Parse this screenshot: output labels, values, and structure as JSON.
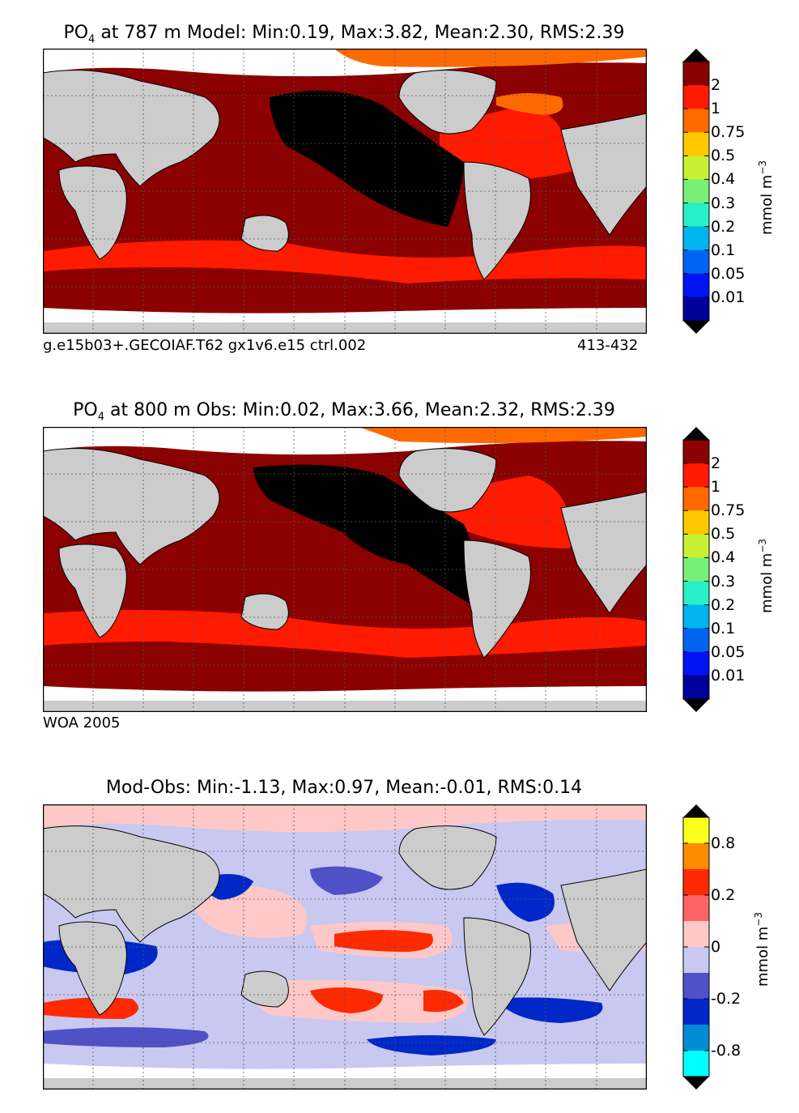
{
  "panels": [
    {
      "title_prefix": "PO",
      "title_sub": "4",
      "title_rest": " at 787 m Model: Min:0.19, Max:3.82, Mean:2.30, RMS:2.39",
      "caption_left": "g.e15b03+.GECOIAF.T62 gx1v6.e15 ctrl.002",
      "caption_right": "413-432",
      "colorbar": {
        "labels": [
          "2",
          "1",
          "0.75",
          "0.5",
          "0.4",
          "0.3",
          "0.2",
          "0.1",
          "0.05",
          "0.01"
        ],
        "colors": [
          "#8b0000",
          "#ff1a00",
          "#ff6a00",
          "#ffc800",
          "#c8f032",
          "#78f078",
          "#28f0c8",
          "#00b4f0",
          "#0064f0",
          "#0014f0",
          "#00009b"
        ],
        "unit": "mmol m",
        "unit_exp": "−3"
      }
    },
    {
      "title_prefix": "PO",
      "title_sub": "4",
      "title_rest": " at 800 m Obs: Min:0.02, Max:3.66, Mean:2.32, RMS:2.39",
      "caption_left": "WOA 2005",
      "caption_right": "",
      "colorbar": {
        "labels": [
          "2",
          "1",
          "0.75",
          "0.5",
          "0.4",
          "0.3",
          "0.2",
          "0.1",
          "0.05",
          "0.01"
        ],
        "colors": [
          "#8b0000",
          "#ff1a00",
          "#ff6a00",
          "#ffc800",
          "#c8f032",
          "#78f078",
          "#28f0c8",
          "#00b4f0",
          "#0064f0",
          "#0014f0",
          "#00009b"
        ],
        "unit": "mmol m",
        "unit_exp": "−3"
      }
    },
    {
      "title_prefix": "",
      "title_sub": "",
      "title_rest": "Mod-Obs: Min:-1.13, Max:0.97, Mean:-0.01, RMS:0.14",
      "caption_left": "",
      "caption_right": "",
      "colorbar": {
        "labels": [
          "0.8",
          "0.2",
          "0",
          "-0.2",
          "-0.8"
        ],
        "colors": [
          "#ffff1e",
          "#ff8c00",
          "#ff2a00",
          "#ff6464",
          "#ffc8c8",
          "#c8c8f0",
          "#5050c8",
          "#0028c8",
          "#008cd2",
          "#00ffff"
        ],
        "unit": "mmol m",
        "unit_exp": "−3"
      }
    }
  ]
}
